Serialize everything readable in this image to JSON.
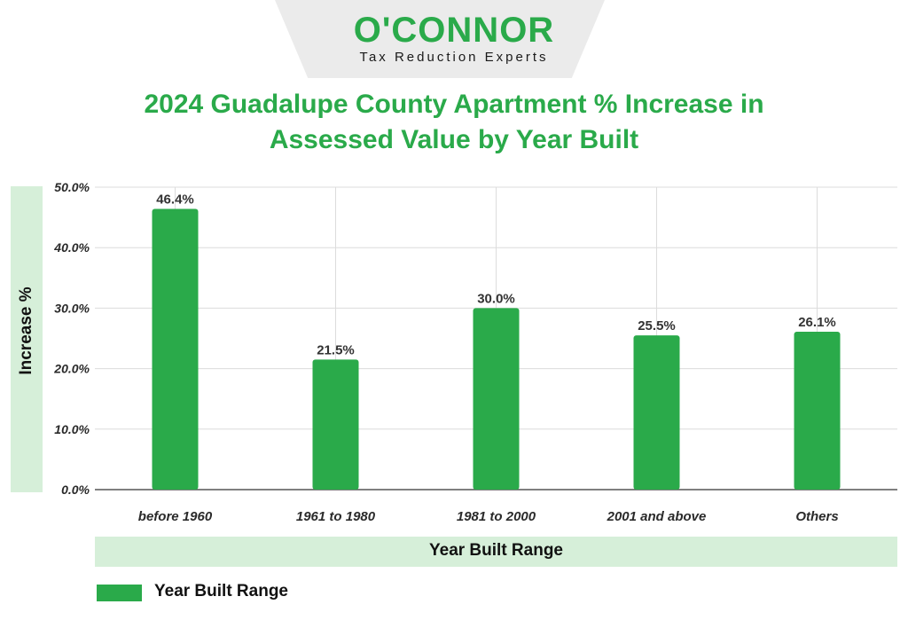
{
  "brand": {
    "name": "O'CONNOR",
    "tagline": "Tax Reduction Experts"
  },
  "colors": {
    "accent": "#2aaa4a",
    "band": "#d6efd9",
    "grid": "#dcdcdc"
  },
  "chart_data": {
    "type": "bar",
    "title": "2024 Guadalupe County Apartment % Increase in Assessed Value by Year Built",
    "xlabel": "Year Built Range",
    "ylabel": "Increase %",
    "categories": [
      "before 1960",
      "1961 to 1980",
      "1981 to 2000",
      "2001 and above",
      "Others"
    ],
    "series": [
      {
        "name": "Year Built Range",
        "values": [
          46.4,
          21.5,
          30.0,
          25.5,
          26.1
        ]
      }
    ],
    "data_labels": [
      "46.4%",
      "21.5%",
      "30.0%",
      "25.5%",
      "26.1%"
    ],
    "yticks": [
      0,
      10,
      20,
      30,
      40,
      50
    ],
    "ytick_labels": [
      "0.0%",
      "10.0%",
      "20.0%",
      "30.0%",
      "40.0%",
      "50.0%"
    ],
    "ylim": [
      0,
      50
    ],
    "grid": true,
    "legend_position": "bottom-left"
  }
}
